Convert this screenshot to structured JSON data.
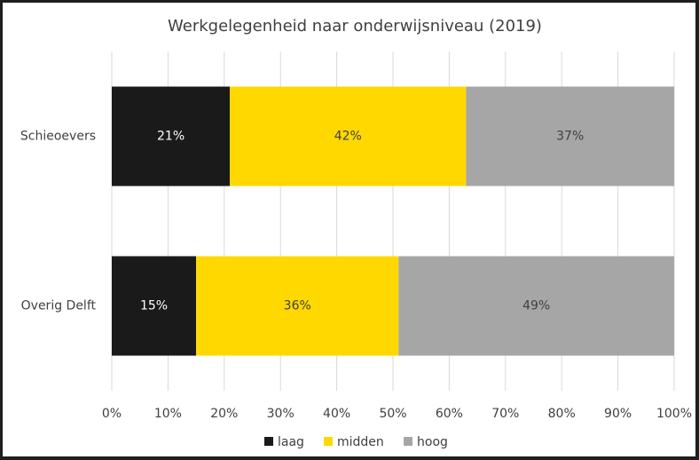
{
  "chart_data": {
    "type": "stacked_barh",
    "title": "Werkgelegenheid naar onderwijsniveau (2019)",
    "categories": [
      "Schieoevers",
      "Overig Delft"
    ],
    "series": [
      {
        "name": "laag",
        "color": "#1a1a1a",
        "values": [
          21,
          15
        ],
        "value_labels": [
          "21%",
          "15%"
        ],
        "label_color": "#ffffff"
      },
      {
        "name": "midden",
        "color": "#ffd800",
        "values": [
          42,
          36
        ],
        "value_labels": [
          "42%",
          "36%"
        ],
        "label_color": "#404040"
      },
      {
        "name": "hoog",
        "color": "#a6a6a6",
        "values": [
          37,
          49
        ],
        "value_labels": [
          "37%",
          "49%"
        ],
        "label_color": "#404040"
      }
    ],
    "xlim": [
      0,
      100
    ],
    "xticks": [
      {
        "value": 0,
        "label": "0%"
      },
      {
        "value": 10,
        "label": "10%"
      },
      {
        "value": 20,
        "label": "20%"
      },
      {
        "value": 30,
        "label": "30%"
      },
      {
        "value": 40,
        "label": "40%"
      },
      {
        "value": 50,
        "label": "50%"
      },
      {
        "value": 60,
        "label": "60%"
      },
      {
        "value": 70,
        "label": "70%"
      },
      {
        "value": 80,
        "label": "80%"
      },
      {
        "value": 90,
        "label": "90%"
      },
      {
        "value": 100,
        "label": "100%"
      }
    ],
    "grid": true,
    "legend": "bottom"
  }
}
